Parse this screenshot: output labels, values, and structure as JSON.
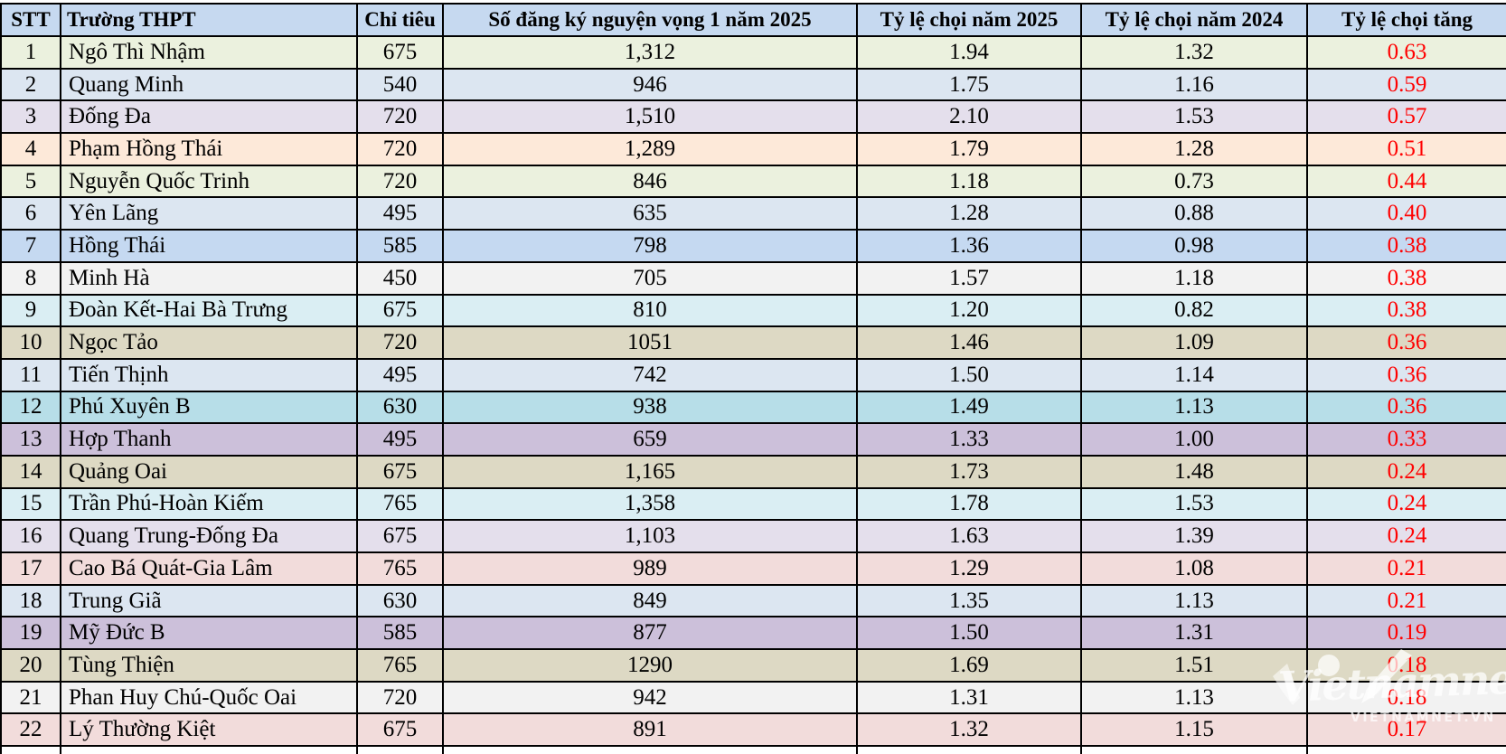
{
  "table": {
    "columns": [
      {
        "key": "stt",
        "label": "STT"
      },
      {
        "key": "school",
        "label": "Trường THPT"
      },
      {
        "key": "quota",
        "label": "Chỉ tiêu"
      },
      {
        "key": "reg",
        "label": "Số đăng ký nguyện vọng 1 năm 2025"
      },
      {
        "key": "r2025",
        "label": "Tỷ lệ chọi năm 2025"
      },
      {
        "key": "r2024",
        "label": "Tỷ lệ chọi năm 2024"
      },
      {
        "key": "inc",
        "label": "Tỷ lệ chọi tăng"
      }
    ],
    "rows": [
      {
        "stt": "1",
        "school": "Ngô Thì Nhậm",
        "quota": "675",
        "reg": "1,312",
        "r2025": "1.94",
        "r2024": "1.32",
        "inc": "0.63",
        "bg": "#ebf1de"
      },
      {
        "stt": "2",
        "school": "Quang Minh",
        "quota": "540",
        "reg": "946",
        "r2025": "1.75",
        "r2024": "1.16",
        "inc": "0.59",
        "bg": "#dce6f1"
      },
      {
        "stt": "3",
        "school": "Đống Đa",
        "quota": "720",
        "reg": "1,510",
        "r2025": "2.10",
        "r2024": "1.53",
        "inc": "0.57",
        "bg": "#e4dfec"
      },
      {
        "stt": "4",
        "school": "Phạm Hồng Thái",
        "quota": "720",
        "reg": "1,289",
        "r2025": "1.79",
        "r2024": "1.28",
        "inc": "0.51",
        "bg": "#fde9d9"
      },
      {
        "stt": "5",
        "school": "Nguyễn Quốc Trinh",
        "quota": "720",
        "reg": "846",
        "r2025": "1.18",
        "r2024": "0.73",
        "inc": "0.44",
        "bg": "#ebf1de"
      },
      {
        "stt": "6",
        "school": "Yên Lãng",
        "quota": "495",
        "reg": "635",
        "r2025": "1.28",
        "r2024": "0.88",
        "inc": "0.40",
        "bg": "#dce6f1"
      },
      {
        "stt": "7",
        "school": "Hồng Thái",
        "quota": "585",
        "reg": "798",
        "r2025": "1.36",
        "r2024": "0.98",
        "inc": "0.38",
        "bg": "#c5d9f1"
      },
      {
        "stt": "8",
        "school": "Minh Hà",
        "quota": "450",
        "reg": "705",
        "r2025": "1.57",
        "r2024": "1.18",
        "inc": "0.38",
        "bg": "#f2f2f2"
      },
      {
        "stt": "9",
        "school": "Đoàn Kết-Hai Bà Trưng",
        "quota": "675",
        "reg": "810",
        "r2025": "1.20",
        "r2024": "0.82",
        "inc": "0.38",
        "bg": "#daeef3"
      },
      {
        "stt": "10",
        "school": "Ngọc Tảo",
        "quota": "720",
        "reg": "1051",
        "r2025": "1.46",
        "r2024": "1.09",
        "inc": "0.36",
        "bg": "#ddd9c4"
      },
      {
        "stt": "11",
        "school": "Tiến Thịnh",
        "quota": "495",
        "reg": "742",
        "r2025": "1.50",
        "r2024": "1.14",
        "inc": "0.36",
        "bg": "#dce6f1"
      },
      {
        "stt": "12",
        "school": "Phú Xuyên B",
        "quota": "630",
        "reg": "938",
        "r2025": "1.49",
        "r2024": "1.13",
        "inc": "0.36",
        "bg": "#b7dee8"
      },
      {
        "stt": "13",
        "school": "Hợp Thanh",
        "quota": "495",
        "reg": "659",
        "r2025": "1.33",
        "r2024": "1.00",
        "inc": "0.33",
        "bg": "#ccc0da"
      },
      {
        "stt": "14",
        "school": "Quảng Oai",
        "quota": "675",
        "reg": "1,165",
        "r2025": "1.73",
        "r2024": "1.48",
        "inc": "0.24",
        "bg": "#ddd9c4"
      },
      {
        "stt": "15",
        "school": "Trần Phú-Hoàn Kiếm",
        "quota": "765",
        "reg": "1,358",
        "r2025": "1.78",
        "r2024": "1.53",
        "inc": "0.24",
        "bg": "#daeef3"
      },
      {
        "stt": "16",
        "school": "Quang Trung-Đống Đa",
        "quota": "675",
        "reg": "1,103",
        "r2025": "1.63",
        "r2024": "1.39",
        "inc": "0.24",
        "bg": "#e4dfec"
      },
      {
        "stt": "17",
        "school": "Cao Bá Quát-Gia Lâm",
        "quota": "765",
        "reg": "989",
        "r2025": "1.29",
        "r2024": "1.08",
        "inc": "0.21",
        "bg": "#f2dcdb"
      },
      {
        "stt": "18",
        "school": "Trung Giã",
        "quota": "630",
        "reg": "849",
        "r2025": "1.35",
        "r2024": "1.13",
        "inc": "0.21",
        "bg": "#dce6f1"
      },
      {
        "stt": "19",
        "school": "Mỹ Đức B",
        "quota": "585",
        "reg": "877",
        "r2025": "1.50",
        "r2024": "1.31",
        "inc": "0.19",
        "bg": "#ccc0da"
      },
      {
        "stt": "20",
        "school": "Tùng Thiện",
        "quota": "765",
        "reg": "1290",
        "r2025": "1.69",
        "r2024": "1.51",
        "inc": "0.18",
        "bg": "#ddd9c4"
      },
      {
        "stt": "21",
        "school": "Phan Huy Chú-Quốc Oai",
        "quota": "720",
        "reg": "942",
        "r2025": "1.31",
        "r2024": "1.13",
        "inc": "0.18",
        "bg": "#f2f2f2"
      },
      {
        "stt": "22",
        "school": "Lý Thường Kiệt",
        "quota": "675",
        "reg": "891",
        "r2025": "1.32",
        "r2024": "1.15",
        "inc": "0.17",
        "bg": "#f2dcdb"
      }
    ]
  },
  "chart_data": {
    "type": "table",
    "title": "",
    "columns": [
      "STT",
      "Trường THPT",
      "Chỉ tiêu",
      "Số đăng ký nguyện vọng 1 năm 2025",
      "Tỷ lệ chọi năm 2025",
      "Tỷ lệ chọi năm 2024",
      "Tỷ lệ chọi tăng"
    ],
    "rows": [
      [
        "1",
        "Ngô Thì Nhậm",
        "675",
        "1,312",
        "1.94",
        "1.32",
        "0.63"
      ],
      [
        "2",
        "Quang Minh",
        "540",
        "946",
        "1.75",
        "1.16",
        "0.59"
      ],
      [
        "3",
        "Đống Đa",
        "720",
        "1,510",
        "2.10",
        "1.53",
        "0.57"
      ],
      [
        "4",
        "Phạm Hồng Thái",
        "720",
        "1,289",
        "1.79",
        "1.28",
        "0.51"
      ],
      [
        "5",
        "Nguyễn Quốc Trinh",
        "720",
        "846",
        "1.18",
        "0.73",
        "0.44"
      ],
      [
        "6",
        "Yên Lãng",
        "495",
        "635",
        "1.28",
        "0.88",
        "0.40"
      ],
      [
        "7",
        "Hồng Thái",
        "585",
        "798",
        "1.36",
        "0.98",
        "0.38"
      ],
      [
        "8",
        "Minh Hà",
        "450",
        "705",
        "1.57",
        "1.18",
        "0.38"
      ],
      [
        "9",
        "Đoàn Kết-Hai Bà Trưng",
        "675",
        "810",
        "1.20",
        "0.82",
        "0.38"
      ],
      [
        "10",
        "Ngọc Tảo",
        "720",
        "1051",
        "1.46",
        "1.09",
        "0.36"
      ],
      [
        "11",
        "Tiến Thịnh",
        "495",
        "742",
        "1.50",
        "1.14",
        "0.36"
      ],
      [
        "12",
        "Phú Xuyên B",
        "630",
        "938",
        "1.49",
        "1.13",
        "0.36"
      ],
      [
        "13",
        "Hợp Thanh",
        "495",
        "659",
        "1.33",
        "1.00",
        "0.33"
      ],
      [
        "14",
        "Quảng Oai",
        "675",
        "1,165",
        "1.73",
        "1.48",
        "0.24"
      ],
      [
        "15",
        "Trần Phú-Hoàn Kiếm",
        "765",
        "1,358",
        "1.78",
        "1.53",
        "0.24"
      ],
      [
        "16",
        "Quang Trung-Đống Đa",
        "675",
        "1,103",
        "1.63",
        "1.39",
        "0.24"
      ],
      [
        "17",
        "Cao Bá Quát-Gia Lâm",
        "765",
        "989",
        "1.29",
        "1.08",
        "0.21"
      ],
      [
        "18",
        "Trung Giã",
        "630",
        "849",
        "1.35",
        "1.13",
        "0.21"
      ],
      [
        "19",
        "Mỹ Đức B",
        "585",
        "877",
        "1.50",
        "1.31",
        "0.19"
      ],
      [
        "20",
        "Tùng Thiện",
        "765",
        "1290",
        "1.69",
        "1.51",
        "0.18"
      ],
      [
        "21",
        "Phan Huy Chú-Quốc Oai",
        "720",
        "942",
        "1.31",
        "1.13",
        "0.18"
      ],
      [
        "22",
        "Lý Thường Kiệt",
        "675",
        "891",
        "1.32",
        "1.15",
        "0.17"
      ]
    ]
  },
  "watermark": {
    "script": "Vietnamnet",
    "caps": "VIETNAMNET.VN"
  },
  "colors": {
    "header_bg": "#c6d9f0",
    "increase_text": "#ff0000",
    "border": "#000000",
    "watermark": "rgba(255,255,255,0.72)"
  }
}
